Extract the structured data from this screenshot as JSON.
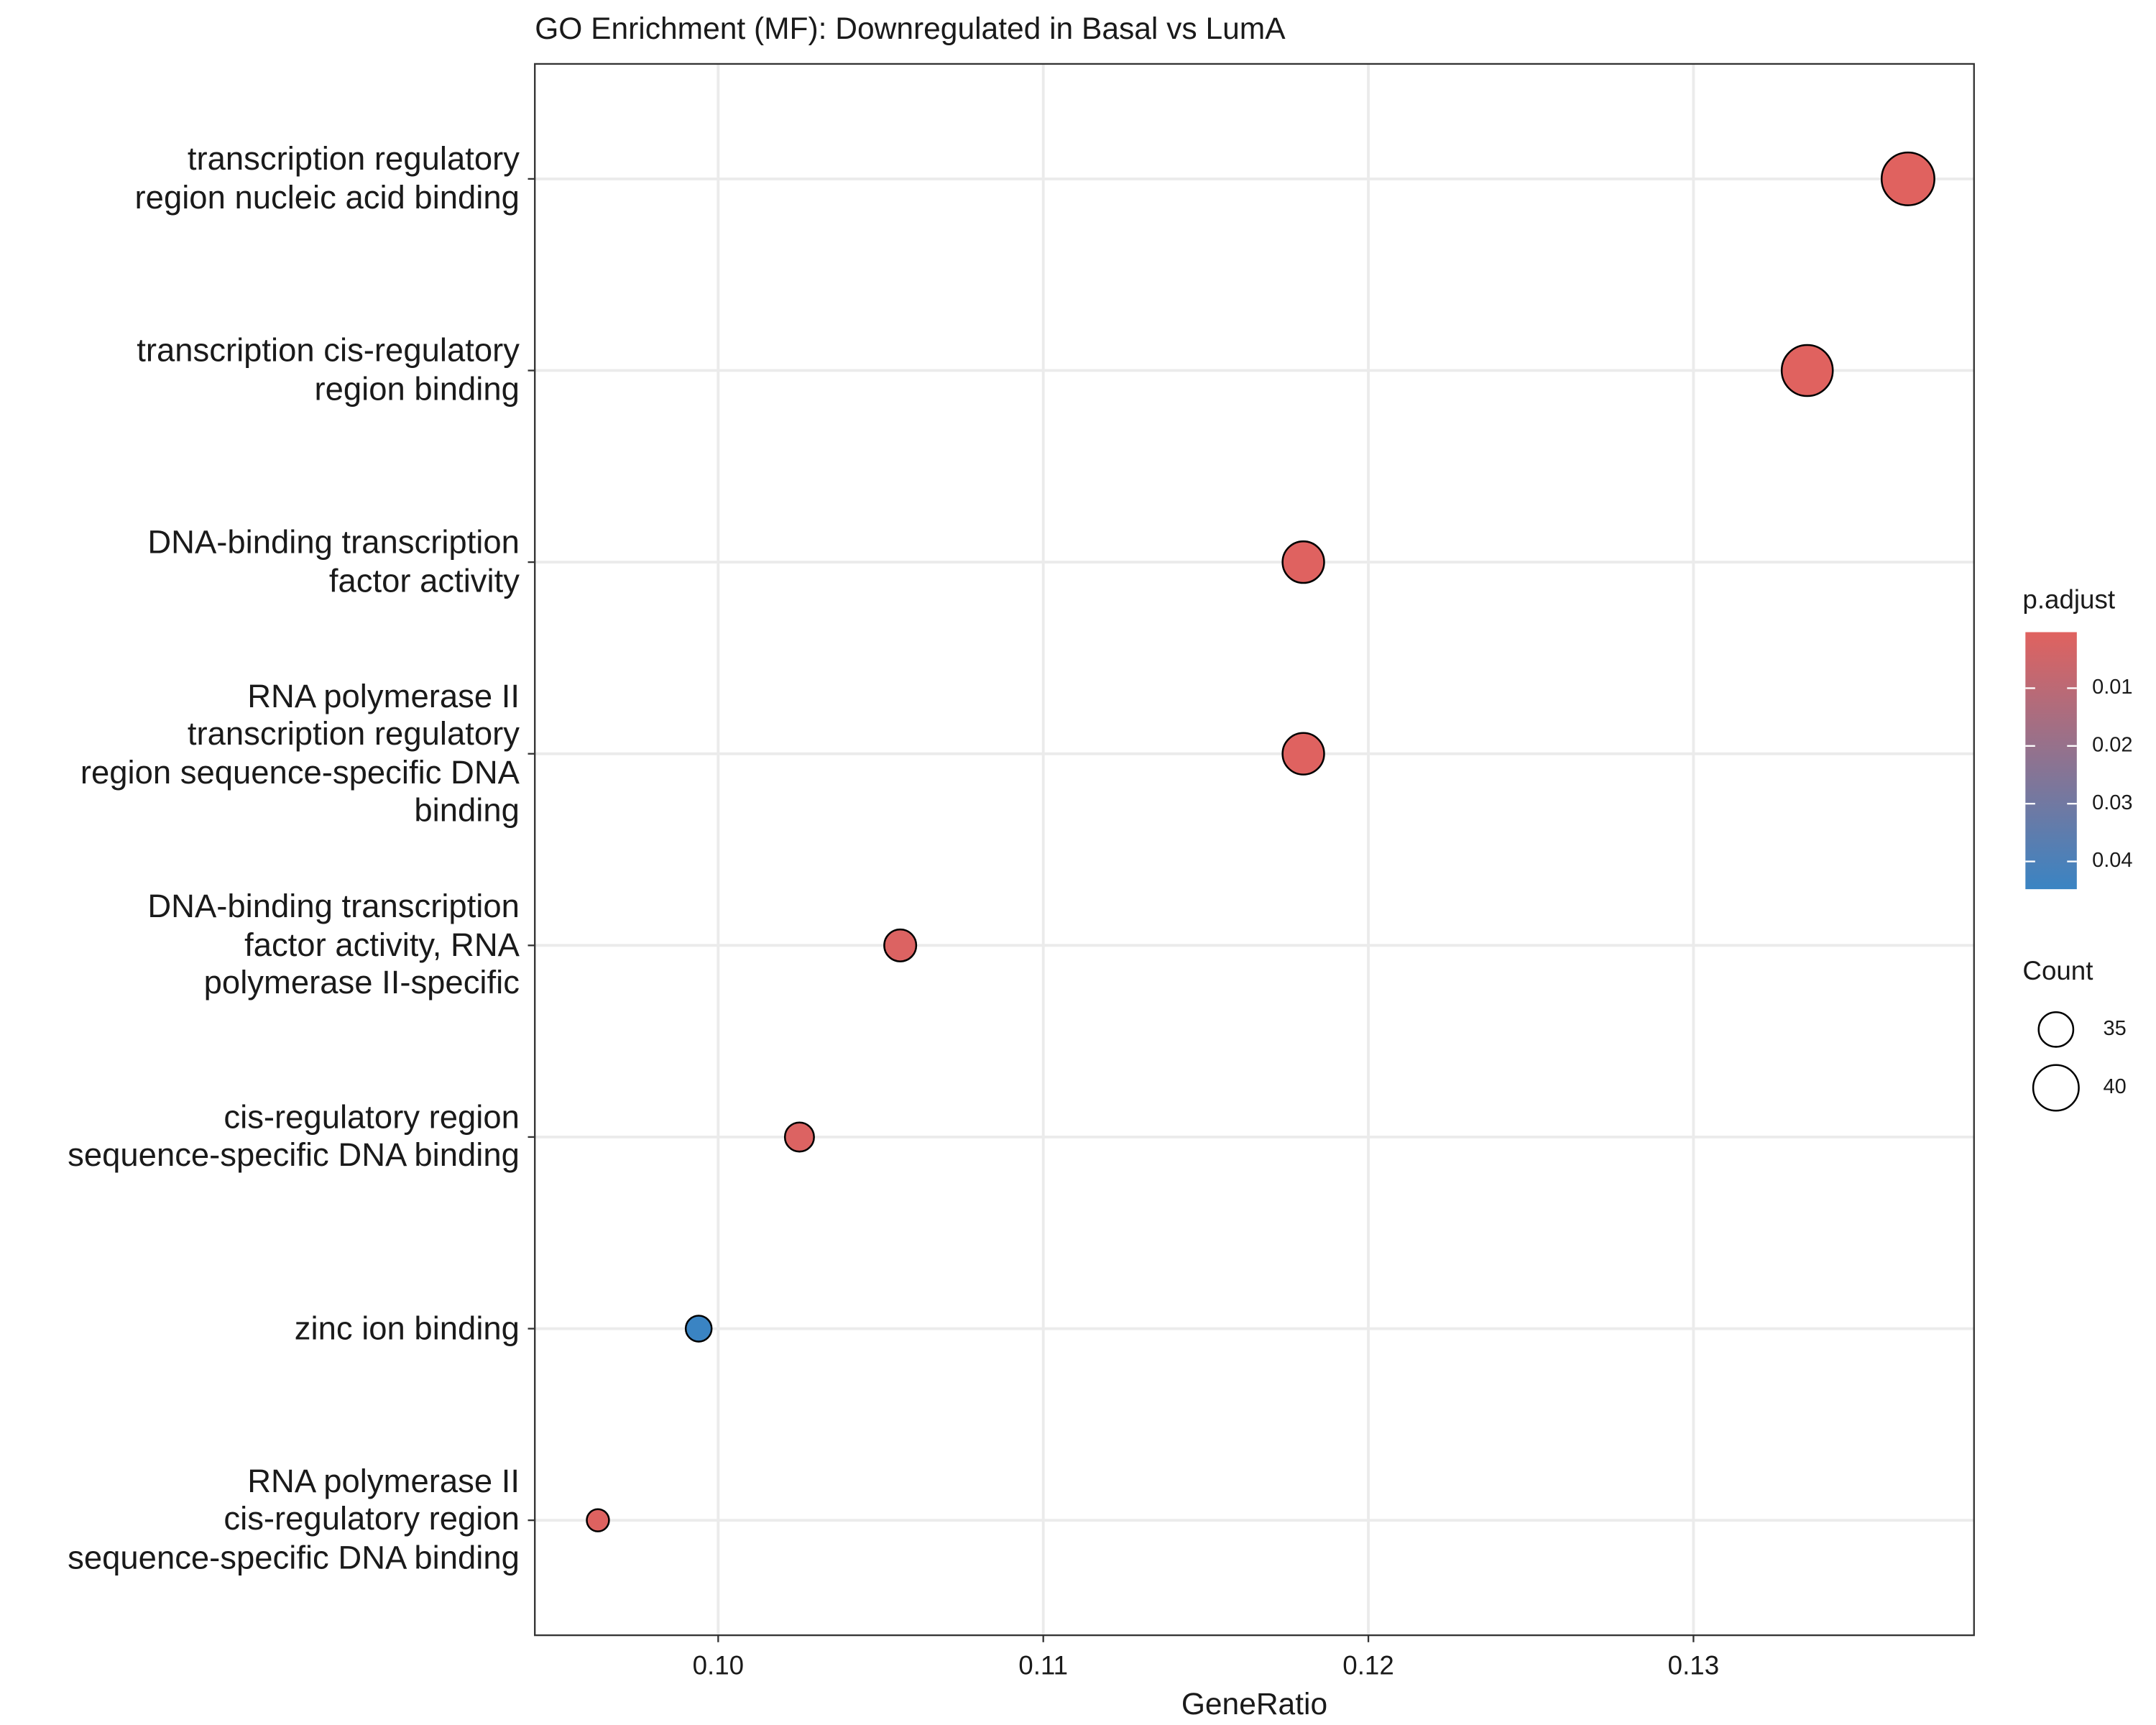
{
  "chart_data": {
    "type": "dot",
    "title": "GO Enrichment (MF): Downregulated in Basal vs LumA",
    "x_label": "GeneRatio",
    "categories": [
      "transcription regulatory\nregion nucleic acid binding",
      "transcription cis-regulatory\nregion binding",
      "DNA-binding transcription\nfactor activity",
      "RNA polymerase II\ntranscription regulatory\nregion sequence-specific DNA\nbinding",
      "DNA-binding transcription\nfactor activity, RNA\npolymerase II-specific",
      "cis-regulatory region\nsequence-specific DNA binding",
      "zinc ion binding",
      "RNA polymerase II\ncis-regulatory region\nsequence-specific DNA binding"
    ],
    "values": [
      0.1366,
      0.1335,
      0.118,
      0.118,
      0.1056,
      0.1025,
      0.0994,
      0.0963
    ],
    "count": [
      44,
      43,
      38,
      38,
      34,
      33,
      32,
      31
    ],
    "p_adjust": [
      0.0003,
      0.0003,
      0.0006,
      0.0006,
      0.0015,
      0.0015,
      0.0448,
      0.0008
    ],
    "xlim": [
      0.09436,
      0.13863
    ],
    "xticks": [
      {
        "value": 0.1,
        "label": "0.10"
      },
      0.11,
      0.12,
      0.13
    ],
    "grid": true,
    "color_legend": {
      "title": "p.adjust",
      "lim": [
        0.0003,
        0.0448
      ],
      "ticks": [
        0.01,
        0.02,
        0.03,
        0.04
      ],
      "low_color": "#e0625f",
      "high_color": "#3a84c3"
    },
    "size_legend": {
      "title": "Count",
      "values": [
        35,
        40
      ]
    }
  }
}
